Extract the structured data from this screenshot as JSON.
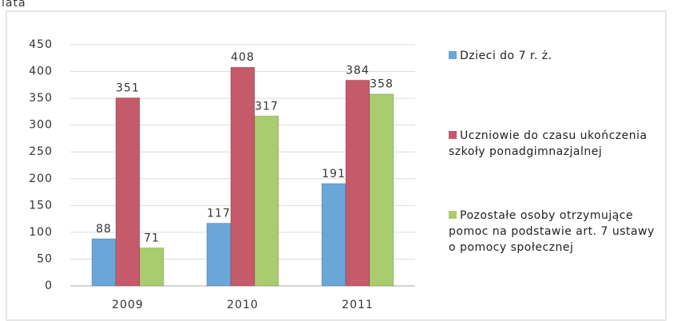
{
  "chart_data": {
    "type": "bar",
    "caption": "lata",
    "categories": [
      "2009",
      "2010",
      "2011"
    ],
    "series": [
      {
        "name": "Dzieci do 7 r. ż.",
        "color": "#6aa6d8",
        "values": [
          88,
          117,
          191
        ]
      },
      {
        "name": "Uczniowie do czasu ukończenia szkoły ponadgimnazjalnej",
        "color": "#c45a6a",
        "values": [
          351,
          408,
          384
        ]
      },
      {
        "name": "Pozostałe osoby otrzymujące pomoc na podstawie art. 7 ustawy o pomocy społecznej",
        "color": "#a9cc6e",
        "values": [
          71,
          317,
          358
        ]
      }
    ],
    "ylim": [
      0,
      450
    ],
    "yticks": [
      0,
      50,
      100,
      150,
      200,
      250,
      300,
      350,
      400,
      450
    ],
    "grid": true,
    "legend": "right"
  }
}
